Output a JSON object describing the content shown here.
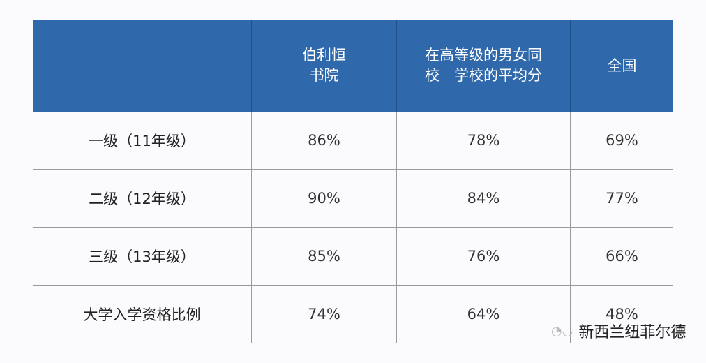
{
  "table": {
    "headers": [
      "",
      "伯利恒\n书院",
      "在高等级的男女同\n校　学校的平均分",
      "全国"
    ],
    "rows": [
      [
        "一级（11年级）",
        "86%",
        "78%",
        "69%"
      ],
      [
        "二级（12年级）",
        "90%",
        "84%",
        "77%"
      ],
      [
        "三级（13年级）",
        "85%",
        "76%",
        "66%"
      ],
      [
        "大学入学资格比例",
        "74%",
        "64%",
        "48%"
      ]
    ]
  },
  "watermark": {
    "text": "新西兰纽菲尔德",
    "icon": "wechat-icon"
  },
  "colors": {
    "header_bg": "#2f69ab",
    "header_text": "#ffffff"
  }
}
